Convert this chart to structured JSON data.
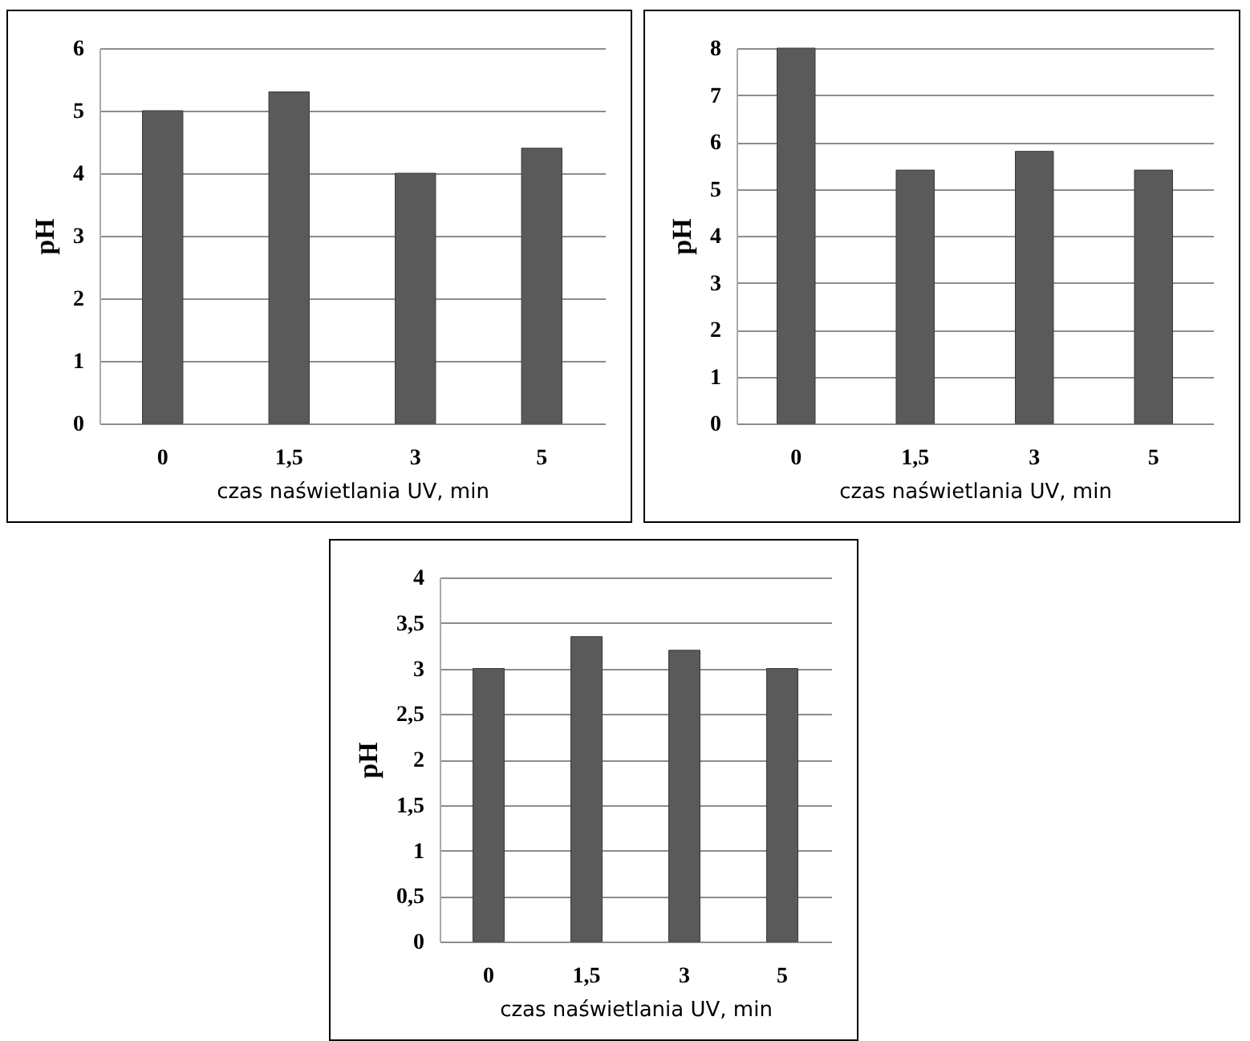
{
  "chart_data": [
    {
      "type": "bar",
      "xlabel": "czas naświetlania UV, min",
      "ylabel": "pH",
      "categories": [
        "0",
        "1,5",
        "3",
        "5"
      ],
      "values": [
        5.0,
        5.3,
        4.0,
        4.4
      ],
      "color": "#5a5a5a",
      "ylim": [
        0,
        6
      ],
      "yticks": [
        0,
        1,
        2,
        3,
        4,
        5,
        6
      ],
      "grid": "y"
    },
    {
      "type": "bar",
      "xlabel": "czas naświetlania UV, min",
      "ylabel": "pH",
      "categories": [
        "0",
        "1,5",
        "3",
        "5"
      ],
      "values": [
        8.0,
        5.4,
        5.8,
        5.4
      ],
      "color": "#5a5a5a",
      "ylim": [
        0,
        8
      ],
      "yticks": [
        0,
        1,
        2,
        3,
        4,
        5,
        6,
        7,
        8
      ],
      "grid": "y"
    },
    {
      "type": "bar",
      "xlabel": "czas naświetlania UV, min",
      "ylabel": "pH",
      "categories": [
        "0",
        "1,5",
        "3",
        "5"
      ],
      "values": [
        3.0,
        3.35,
        3.2,
        3.0
      ],
      "color": "#5a5a5a",
      "ylim": [
        0,
        4
      ],
      "yticks": [
        0,
        {
          "value": 0.5,
          "label": "0,5"
        },
        1,
        {
          "value": 1.5,
          "label": "1,5"
        },
        2,
        {
          "value": 2.5,
          "label": "2,5"
        },
        3,
        {
          "value": 3.5,
          "label": "3,5"
        },
        4
      ],
      "grid": "y"
    }
  ]
}
